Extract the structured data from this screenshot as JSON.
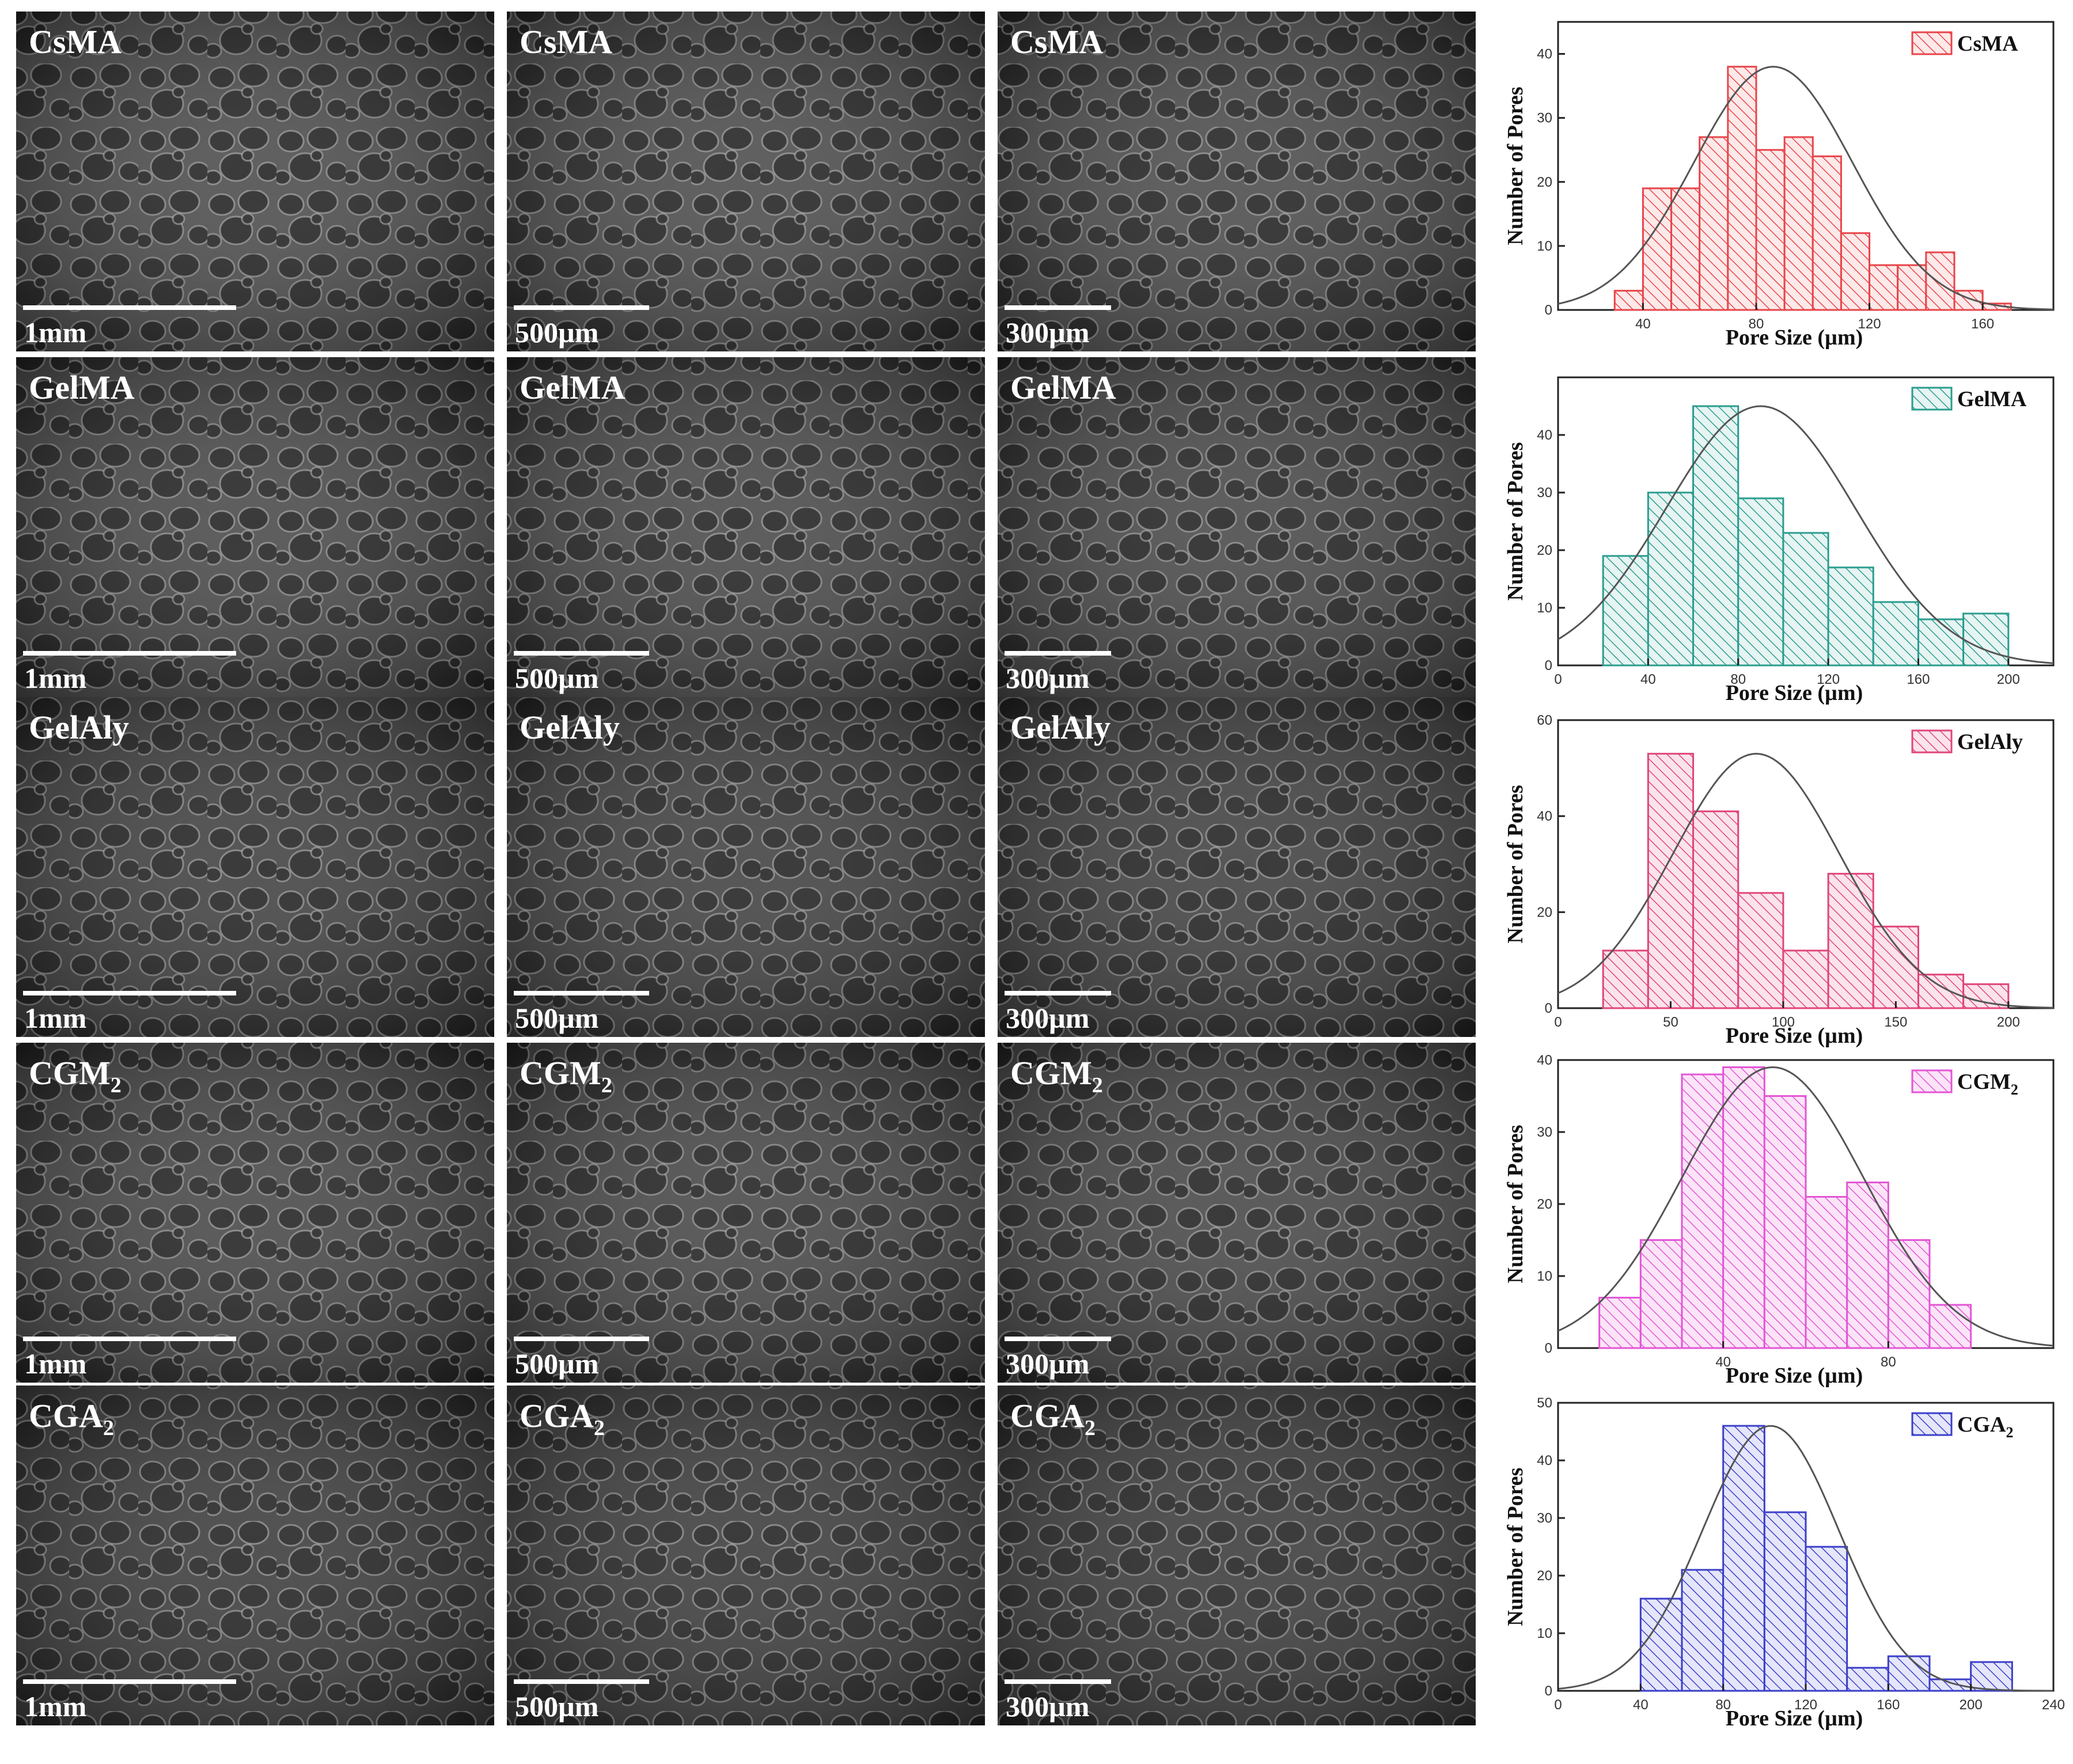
{
  "sem_panels": [
    {
      "row": 0,
      "col": 0,
      "label": "CsMA",
      "scale": "1mm"
    },
    {
      "row": 0,
      "col": 1,
      "label": "CsMA",
      "scale": "500µm"
    },
    {
      "row": 0,
      "col": 2,
      "label": "CsMA",
      "scale": "300µm"
    },
    {
      "row": 1,
      "col": 0,
      "label": "GelMA",
      "scale": "1mm"
    },
    {
      "row": 1,
      "col": 1,
      "label": "GelMA",
      "scale": "500µm"
    },
    {
      "row": 1,
      "col": 2,
      "label": "GelMA",
      "scale": "300µm"
    },
    {
      "row": 2,
      "col": 0,
      "label": "GelAly",
      "scale": "1mm"
    },
    {
      "row": 2,
      "col": 1,
      "label": "GelAly",
      "scale": "500µm"
    },
    {
      "row": 2,
      "col": 2,
      "label": "GelAly",
      "scale": "300µm"
    },
    {
      "row": 3,
      "col": 0,
      "label": "CGM",
      "label_sub": "2",
      "scale": "1mm"
    },
    {
      "row": 3,
      "col": 1,
      "label": "CGM",
      "label_sub": "2",
      "scale": "500µm"
    },
    {
      "row": 3,
      "col": 2,
      "label": "CGM",
      "label_sub": "2",
      "scale": "300µm"
    },
    {
      "row": 4,
      "col": 0,
      "label": "CGA",
      "label_sub": "2",
      "scale": "1mm"
    },
    {
      "row": 4,
      "col": 1,
      "label": "CGA",
      "label_sub": "2",
      "scale": "500µm"
    },
    {
      "row": 4,
      "col": 2,
      "label": "CGA",
      "label_sub": "2",
      "scale": "300µm"
    }
  ],
  "chart_data": [
    {
      "type": "bar",
      "legend": "CsMA",
      "color": "#e8454a",
      "fill": "#fde9e9",
      "xlabel": "Pore Size (µm)",
      "ylabel": "Number of Pores",
      "xlim": [
        10,
        185
      ],
      "ylim": [
        0,
        45
      ],
      "xticks": [
        40,
        80,
        120,
        160
      ],
      "yticks": [
        0,
        10,
        20,
        30,
        40
      ],
      "bin_width": 10,
      "bins": [
        {
          "x": 30,
          "count": 3
        },
        {
          "x": 40,
          "count": 19
        },
        {
          "x": 50,
          "count": 19
        },
        {
          "x": 60,
          "count": 27
        },
        {
          "x": 70,
          "count": 38
        },
        {
          "x": 80,
          "count": 25
        },
        {
          "x": 90,
          "count": 27
        },
        {
          "x": 100,
          "count": 24
        },
        {
          "x": 110,
          "count": 12
        },
        {
          "x": 120,
          "count": 7
        },
        {
          "x": 130,
          "count": 7
        },
        {
          "x": 140,
          "count": 9
        },
        {
          "x": 150,
          "count": 3
        },
        {
          "x": 160,
          "count": 1
        }
      ],
      "fit": {
        "mean": 86,
        "sd": 28,
        "peak": 38
      }
    },
    {
      "type": "bar",
      "legend": "GelMA",
      "color": "#2a9d8f",
      "fill": "#e6f4f2",
      "xlabel": "Pore Size (µm)",
      "ylabel": "Number of Pores",
      "xlim": [
        0,
        220
      ],
      "ylim": [
        0,
        50
      ],
      "xticks": [
        0,
        40,
        80,
        120,
        160,
        200
      ],
      "yticks": [
        0,
        10,
        20,
        30,
        40
      ],
      "bin_width": 20,
      "bins": [
        {
          "x": 20,
          "count": 19
        },
        {
          "x": 40,
          "count": 30
        },
        {
          "x": 60,
          "count": 45
        },
        {
          "x": 80,
          "count": 29
        },
        {
          "x": 100,
          "count": 23
        },
        {
          "x": 120,
          "count": 17
        },
        {
          "x": 140,
          "count": 11
        },
        {
          "x": 160,
          "count": 8
        },
        {
          "x": 180,
          "count": 9
        }
      ],
      "fit": {
        "mean": 90,
        "sd": 42,
        "peak": 45
      }
    },
    {
      "type": "bar",
      "legend": "GelAly",
      "color": "#e0457b",
      "fill": "#fbe3ec",
      "xlabel": "Pore Size (µm)",
      "ylabel": "Number of Pores",
      "xlim": [
        0,
        220
      ],
      "ylim": [
        0,
        60
      ],
      "xticks": [
        0,
        50,
        100,
        150,
        200
      ],
      "yticks": [
        0,
        20,
        40,
        60
      ],
      "bin_width": 20,
      "bins": [
        {
          "x": 20,
          "count": 12
        },
        {
          "x": 40,
          "count": 53
        },
        {
          "x": 60,
          "count": 41
        },
        {
          "x": 80,
          "count": 24
        },
        {
          "x": 100,
          "count": 12
        },
        {
          "x": 120,
          "count": 28
        },
        {
          "x": 140,
          "count": 17
        },
        {
          "x": 160,
          "count": 7
        },
        {
          "x": 180,
          "count": 5
        }
      ],
      "fit": {
        "mean": 88,
        "sd": 37,
        "peak": 53
      }
    },
    {
      "type": "bar",
      "legend": "CGM",
      "legend_sub": "2",
      "color": "#e356d6",
      "fill": "#fbe4f8",
      "xlabel": "Pore Size (µm)",
      "ylabel": "Number of Pores",
      "xlim": [
        0,
        120
      ],
      "ylim": [
        0,
        40
      ],
      "xticks": [
        40,
        80
      ],
      "yticks": [
        0,
        10,
        20,
        30,
        40
      ],
      "bin_width": 10,
      "bins": [
        {
          "x": 10,
          "count": 7
        },
        {
          "x": 20,
          "count": 15
        },
        {
          "x": 30,
          "count": 38
        },
        {
          "x": 40,
          "count": 39
        },
        {
          "x": 50,
          "count": 35
        },
        {
          "x": 60,
          "count": 21
        },
        {
          "x": 70,
          "count": 23
        },
        {
          "x": 80,
          "count": 15
        },
        {
          "x": 90,
          "count": 6
        }
      ],
      "fit": {
        "mean": 52,
        "sd": 22,
        "peak": 39
      }
    },
    {
      "type": "bar",
      "legend": "CGA",
      "legend_sub": "2",
      "color": "#3b3fc9",
      "fill": "#e5e6fa",
      "xlabel": "Pore Size (µm)",
      "ylabel": "Number of Pores",
      "xlim": [
        0,
        240
      ],
      "ylim": [
        0,
        50
      ],
      "xticks": [
        0,
        40,
        80,
        120,
        160,
        200,
        240
      ],
      "yticks": [
        0,
        10,
        20,
        30,
        40,
        50
      ],
      "bin_width": 20,
      "bins": [
        {
          "x": 40,
          "count": 16
        },
        {
          "x": 60,
          "count": 21
        },
        {
          "x": 80,
          "count": 46
        },
        {
          "x": 100,
          "count": 31
        },
        {
          "x": 120,
          "count": 25
        },
        {
          "x": 140,
          "count": 4
        },
        {
          "x": 160,
          "count": 6
        },
        {
          "x": 180,
          "count": 2
        },
        {
          "x": 200,
          "count": 5
        }
      ],
      "fit": {
        "mean": 103,
        "sd": 33,
        "peak": 46
      }
    }
  ]
}
